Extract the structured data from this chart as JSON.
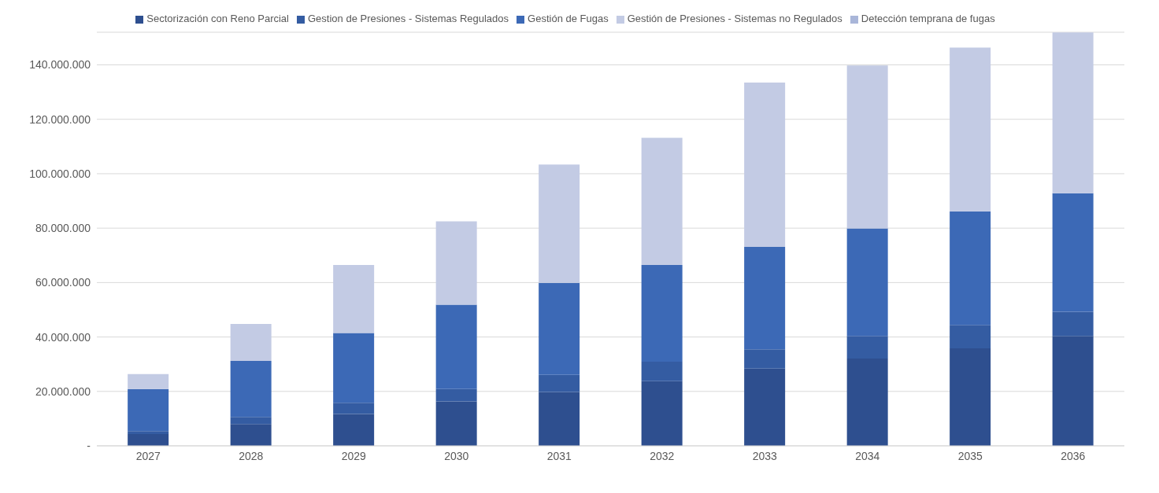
{
  "chart_data": {
    "type": "bar",
    "stacked": true,
    "categories": [
      "2027",
      "2028",
      "2029",
      "2030",
      "2031",
      "2032",
      "2033",
      "2034",
      "2035",
      "2036"
    ],
    "series": [
      {
        "name": "Sectorización con Reno Parcial",
        "color": "#2e4f8f",
        "values": [
          4300000,
          8000000,
          11700000,
          16300000,
          19800000,
          23800000,
          28400000,
          32100000,
          35800000,
          40400000
        ]
      },
      {
        "name": "Gestion de Presiones - Sistemas Regulados",
        "color": "#345ca2",
        "values": [
          1100000,
          2600000,
          4100000,
          4600000,
          6300000,
          7100000,
          7100000,
          8300000,
          8600000,
          8900000
        ]
      },
      {
        "name": "Gestión de Fugas",
        "color": "#3c69b6",
        "values": [
          15500000,
          20600000,
          25700000,
          31000000,
          33800000,
          35600000,
          37600000,
          39500000,
          41800000,
          43500000
        ]
      },
      {
        "name": "Gestión de Presiones - Sistemas no Regulados",
        "color": "#c3cbe4",
        "values": [
          5500000,
          13600000,
          25000000,
          30600000,
          43500000,
          46700000,
          60400000,
          59900000,
          60200000,
          59100000
        ]
      },
      {
        "name": "Detección temprana de fugas",
        "color": "#a9b6d9",
        "values": [
          0,
          0,
          0,
          0,
          0,
          0,
          0,
          0,
          0,
          0
        ]
      }
    ],
    "ylim": [
      0,
      152000000
    ],
    "yticks": [
      {
        "value": 0,
        "label": "-"
      },
      {
        "value": 20000000,
        "label": "20.000.000"
      },
      {
        "value": 40000000,
        "label": "40.000.000"
      },
      {
        "value": 60000000,
        "label": "60.000.000"
      },
      {
        "value": 80000000,
        "label": "80.000.000"
      },
      {
        "value": 100000000,
        "label": "100.000.000"
      },
      {
        "value": 120000000,
        "label": "120.000.000"
      },
      {
        "value": 140000000,
        "label": "140.000.000"
      }
    ],
    "grid": "y",
    "legend": "top"
  }
}
